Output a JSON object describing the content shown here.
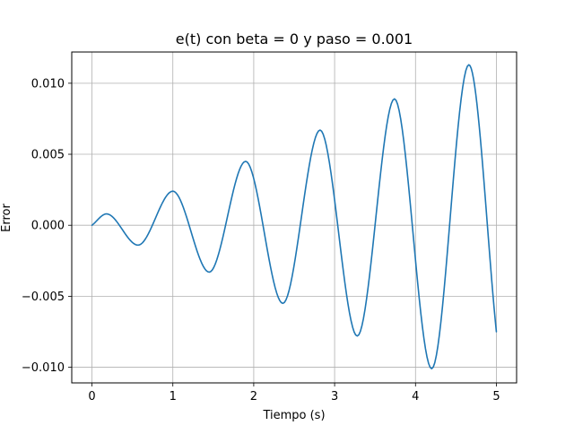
{
  "chart_data": {
    "type": "line",
    "title": "e(t) con beta = 0 y paso = 0.001",
    "xlabel": "Tiempo (s)",
    "ylabel": "Error",
    "xlim": [
      -0.25,
      5.25
    ],
    "ylim": [
      -0.0111,
      0.0122
    ],
    "grid": true,
    "line_color": "#1f77b4",
    "x_ticks": [
      {
        "value": 0,
        "label": "0"
      },
      {
        "value": 1,
        "label": "1"
      },
      {
        "value": 2,
        "label": "2"
      },
      {
        "value": 3,
        "label": "3"
      },
      {
        "value": 4,
        "label": "4"
      },
      {
        "value": 5,
        "label": "5"
      }
    ],
    "y_ticks": [
      {
        "value": -0.01,
        "label": "−0.010"
      },
      {
        "value": -0.005,
        "label": "−0.005"
      },
      {
        "value": 0.0,
        "label": "0.000"
      },
      {
        "value": 0.005,
        "label": "0.005"
      },
      {
        "value": 0.01,
        "label": "0.010"
      }
    ],
    "series": [
      {
        "x": [
          0,
          0.18,
          0.57,
          1.0,
          1.45,
          1.9,
          2.36,
          2.82,
          3.28,
          3.74,
          4.2,
          4.66,
          5.0
        ],
        "y": [
          0,
          0.0008,
          -0.0014,
          0.0024,
          -0.0033,
          0.0045,
          -0.0055,
          0.0067,
          -0.0078,
          0.0089,
          -0.0101,
          0.0113,
          -0.0075
        ]
      }
    ]
  }
}
